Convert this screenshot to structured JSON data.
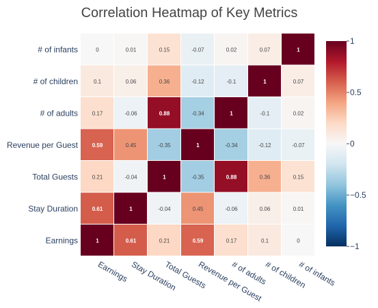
{
  "chart_data": {
    "type": "heatmap",
    "title": "Correlation Heatmap of Key Metrics",
    "x_categories": [
      "Earnings",
      "Stay Duration",
      "Total Guests",
      "Revenue per Guest",
      "# of adults",
      "# of children",
      "# of infants"
    ],
    "y_categories": [
      "Earnings",
      "Stay Duration",
      "Total Guests",
      "Revenue per Guest",
      "# of adults",
      "# of children",
      "# of infants"
    ],
    "z": [
      [
        1,
        0.61,
        0.21,
        0.59,
        0.17,
        0.1,
        0
      ],
      [
        0.61,
        1,
        -0.04,
        0.45,
        -0.06,
        0.06,
        0.01
      ],
      [
        0.21,
        -0.04,
        1,
        -0.35,
        0.88,
        0.36,
        0.15
      ],
      [
        0.59,
        0.45,
        -0.35,
        1,
        -0.34,
        -0.12,
        -0.07
      ],
      [
        0.17,
        -0.06,
        0.88,
        -0.34,
        1,
        -0.1,
        0.02
      ],
      [
        0.1,
        0.06,
        0.36,
        -0.12,
        -0.1,
        1,
        0.07
      ],
      [
        0,
        0.01,
        0.15,
        -0.07,
        0.02,
        0.07,
        1
      ]
    ],
    "zlim": [
      -1,
      1
    ],
    "colorscale": [
      "#053061",
      "#2166ac",
      "#4393c3",
      "#92c5de",
      "#d1e5f0",
      "#f7f7f7",
      "#fddbc7",
      "#f4a582",
      "#d6604d",
      "#b2182b",
      "#67001f"
    ],
    "colorbar": {
      "ticks": [
        1,
        0.5,
        0,
        -0.5,
        -1
      ],
      "tick_labels": [
        "1",
        "0.5",
        "0",
        "−0.5",
        "−1"
      ]
    }
  }
}
